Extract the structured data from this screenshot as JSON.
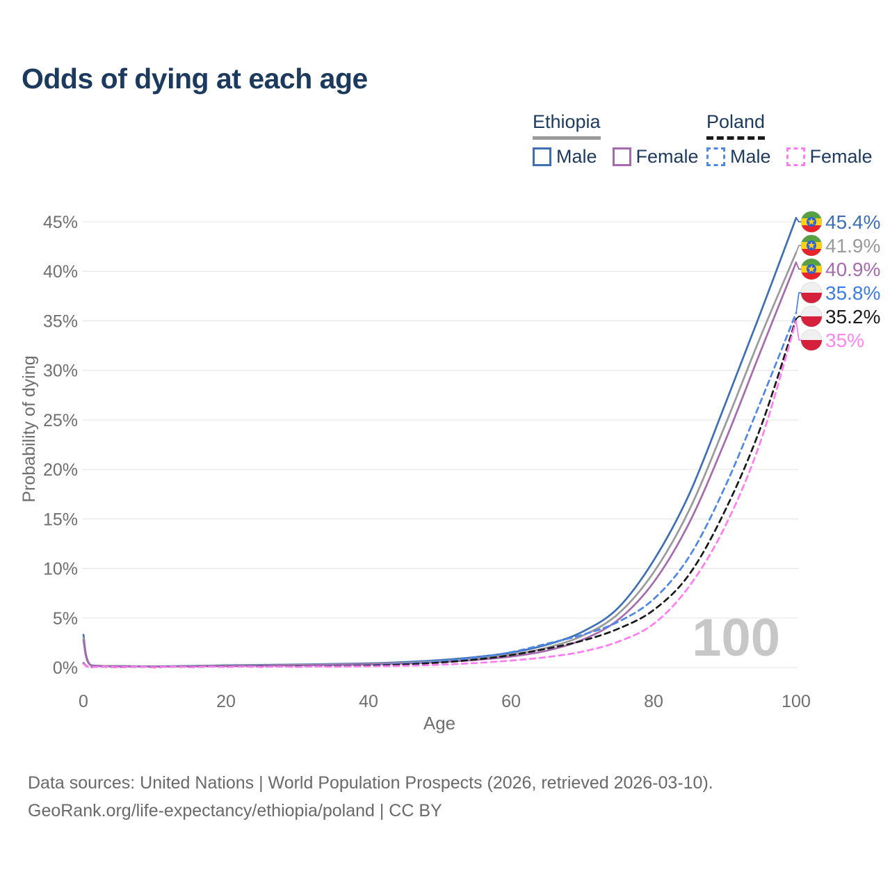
{
  "title": "Odds of dying at each age",
  "legend": {
    "groups": [
      {
        "label": "Ethiopia",
        "underline_series": 1,
        "items": [
          {
            "label": "Male",
            "series": 0
          },
          {
            "label": "Female",
            "series": 2
          }
        ]
      },
      {
        "label": "Poland",
        "underline_series": 4,
        "items": [
          {
            "label": "Male",
            "series": 3
          },
          {
            "label": "Female",
            "series": 5
          }
        ]
      }
    ]
  },
  "chart_data": {
    "type": "line",
    "title": "Odds of dying at each age",
    "xlabel": "Age",
    "ylabel": "Probability of dying",
    "xlim": [
      0,
      100
    ],
    "ylim": [
      0,
      45
    ],
    "grid": "horizontal",
    "legend_position": "top-right",
    "watermark": "100",
    "x": [
      0,
      1,
      5,
      10,
      15,
      20,
      25,
      30,
      35,
      40,
      45,
      50,
      55,
      60,
      65,
      70,
      75,
      80,
      85,
      90,
      95,
      100
    ],
    "xticks": [
      {
        "value": 0,
        "label": "0"
      },
      {
        "value": 20,
        "label": "20"
      },
      {
        "value": 40,
        "label": "40"
      },
      {
        "value": 60,
        "label": "60"
      },
      {
        "value": 80,
        "label": "80"
      },
      {
        "value": 100,
        "label": "100"
      }
    ],
    "yticks": [
      {
        "value": 0,
        "label": "0%"
      },
      {
        "value": 5,
        "label": "5%"
      },
      {
        "value": 10,
        "label": "10%"
      },
      {
        "value": 15,
        "label": "15%"
      },
      {
        "value": 20,
        "label": "20%"
      },
      {
        "value": 25,
        "label": "25%"
      },
      {
        "value": 30,
        "label": "30%"
      },
      {
        "value": 35,
        "label": "35%"
      },
      {
        "value": 40,
        "label": "40%"
      },
      {
        "value": 45,
        "label": "45%"
      }
    ],
    "series": [
      {
        "id": "ethiopia-male",
        "name": "Ethiopia — Male",
        "country": "ethiopia",
        "color": "#3e6fb5",
        "label_color": "#3e6fb5",
        "dashed": false,
        "end_value": 45.4,
        "end_label": "45.4%",
        "values": [
          3.3,
          0.25,
          0.15,
          0.12,
          0.16,
          0.22,
          0.26,
          0.3,
          0.35,
          0.42,
          0.55,
          0.75,
          1.05,
          1.5,
          2.3,
          3.6,
          6.0,
          10.8,
          17.5,
          26.5,
          35.8,
          45.4
        ]
      },
      {
        "id": "ethiopia-both",
        "name": "Ethiopia — Both sexes",
        "country": "ethiopia",
        "color": "#9a9a9a",
        "label_color": "#9a9a9a",
        "dashed": false,
        "end_value": 41.9,
        "end_label": "41.9%",
        "values": [
          3.0,
          0.24,
          0.14,
          0.11,
          0.14,
          0.19,
          0.22,
          0.26,
          0.3,
          0.36,
          0.47,
          0.64,
          0.9,
          1.3,
          2.0,
          3.2,
          5.4,
          9.6,
          15.9,
          24.4,
          33.4,
          41.9
        ]
      },
      {
        "id": "ethiopia-female",
        "name": "Ethiopia — Female",
        "country": "ethiopia",
        "color": "#a66bae",
        "label_color": "#a66bae",
        "dashed": false,
        "end_value": 40.9,
        "end_label": "40.9%",
        "values": [
          2.75,
          0.22,
          0.13,
          0.1,
          0.12,
          0.16,
          0.19,
          0.22,
          0.26,
          0.31,
          0.4,
          0.54,
          0.76,
          1.1,
          1.7,
          2.8,
          4.8,
          8.6,
          14.6,
          22.8,
          31.9,
          40.9
        ]
      },
      {
        "id": "poland-male",
        "name": "Poland — Male",
        "country": "poland",
        "color": "#4d87e8",
        "label_color": "#3c7ce6",
        "dashed": true,
        "end_value": 35.8,
        "end_label": "35.8%",
        "values": [
          0.45,
          0.03,
          0.01,
          0.01,
          0.04,
          0.08,
          0.09,
          0.11,
          0.15,
          0.22,
          0.38,
          0.62,
          1.0,
          1.55,
          2.4,
          3.3,
          4.6,
          6.9,
          11.2,
          18.2,
          26.8,
          35.8
        ]
      },
      {
        "id": "poland-both",
        "name": "Poland — Both sexes",
        "country": "poland",
        "color": "#1a1a1a",
        "label_color": "#1a1a1a",
        "dashed": true,
        "end_value": 35.2,
        "end_label": "35.2%",
        "values": [
          0.42,
          0.02,
          0.01,
          0.01,
          0.03,
          0.06,
          0.07,
          0.09,
          0.12,
          0.18,
          0.3,
          0.5,
          0.8,
          1.25,
          1.9,
          2.7,
          3.9,
          5.8,
          9.4,
          15.8,
          24.2,
          35.2
        ]
      },
      {
        "id": "poland-female",
        "name": "Poland — Female",
        "country": "poland",
        "color": "#ff7df0",
        "label_color": "#ff85ec",
        "dashed": true,
        "end_value": 35.0,
        "end_label": "35%",
        "values": [
          0.38,
          0.02,
          0.01,
          0.01,
          0.02,
          0.03,
          0.04,
          0.05,
          0.07,
          0.11,
          0.17,
          0.28,
          0.45,
          0.7,
          1.05,
          1.6,
          2.6,
          4.4,
          8.2,
          14.2,
          22.8,
          35.0
        ]
      }
    ],
    "flag_colors": {
      "ethiopia": {
        "green": "#57a144",
        "yellow": "#fcd116",
        "red": "#e8232a",
        "emblem_blue": "#2b63d9"
      },
      "poland": {
        "white": "#f0f0f0",
        "red": "#d6213c"
      }
    }
  },
  "footer": {
    "line1": "Data sources: United Nations | World Population Prospects (2026, retrieved 2026-03-10).",
    "line2": "GeoRank.org/life-expectancy/ethiopia/poland | CC BY"
  }
}
